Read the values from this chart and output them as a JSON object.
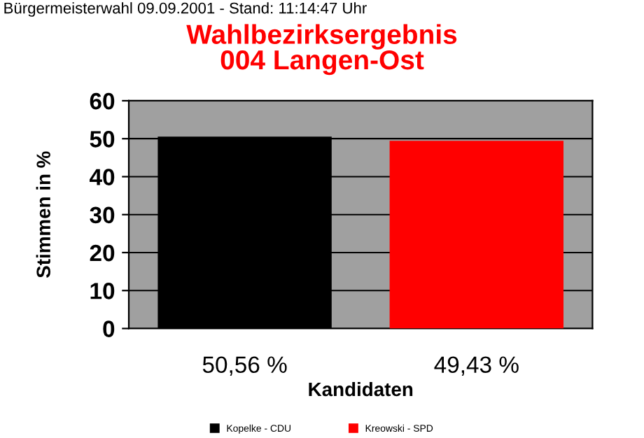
{
  "chart_data": {
    "type": "bar",
    "title": "Wahlbezirksergebnis\n004 Langen-Ost",
    "subtitle": "Bürgermeisterwahl 09.09.2001 - Stand: 11:14:47 Uhr",
    "xlabel": "Kandidaten",
    "ylabel": "Stimmen in %",
    "categories": [
      null,
      null
    ],
    "series": [
      {
        "name": "Kopelke - CDU",
        "color": "#000000",
        "values": [
          50.56,
          null
        ],
        "value_labels": [
          "50,56 %",
          null
        ]
      },
      {
        "name": "Kreowski - SPD",
        "color": "#ff0000",
        "values": [
          null,
          49.43
        ],
        "value_labels": [
          null,
          "49,43 %"
        ]
      }
    ],
    "ylim": [
      0,
      60
    ],
    "yticks": [
      0,
      10,
      20,
      30,
      40,
      50,
      60
    ],
    "grid": "y",
    "legend": "bottom"
  }
}
